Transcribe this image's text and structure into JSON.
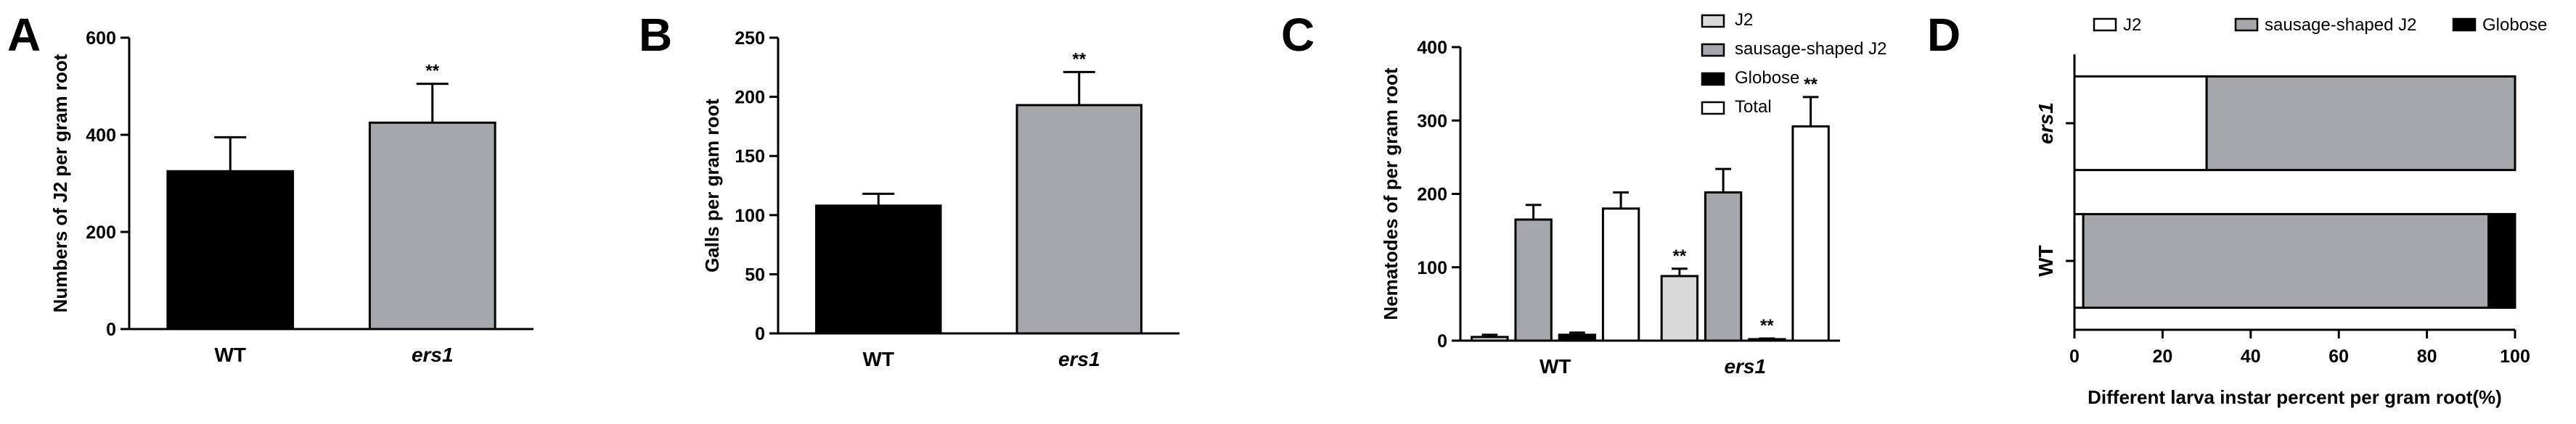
{
  "chart_data": [
    {
      "panel": "A",
      "type": "bar",
      "ylabel": "Numbers of J2 per gram root",
      "categories": [
        "WT",
        "ers1"
      ],
      "italic_categories": [
        false,
        true
      ],
      "values": [
        325,
        425
      ],
      "errors": [
        70,
        80
      ],
      "significance": [
        "",
        "**"
      ],
      "colors": [
        "#000000",
        "#a6a6ad"
      ],
      "ylim": [
        0,
        600
      ],
      "yticks": [
        0,
        200,
        400,
        600
      ]
    },
    {
      "panel": "B",
      "type": "bar",
      "ylabel": "Galls per gram root",
      "categories": [
        "WT",
        "ers1"
      ],
      "italic_categories": [
        false,
        true
      ],
      "values": [
        108,
        193
      ],
      "errors": [
        10,
        28
      ],
      "significance": [
        "",
        "**"
      ],
      "colors": [
        "#000000",
        "#a6a6ad"
      ],
      "ylim": [
        0,
        250
      ],
      "yticks": [
        0,
        50,
        100,
        150,
        200,
        250
      ]
    },
    {
      "panel": "C",
      "type": "bar",
      "ylabel": "Nematodes of per gram root",
      "categories": [
        "WT",
        "ers1"
      ],
      "italic_categories": [
        false,
        true
      ],
      "series": [
        {
          "name": "J2",
          "values": [
            5,
            88
          ],
          "errors": [
            3,
            10
          ],
          "significance": [
            "",
            "**"
          ],
          "color": "#d9d9d9"
        },
        {
          "name": "sausage-shaped J2",
          "values": [
            165,
            202
          ],
          "errors": [
            20,
            32
          ],
          "significance": [
            "",
            ""
          ],
          "color": "#a6a6ad"
        },
        {
          "name": "Globose",
          "values": [
            8,
            2
          ],
          "errors": [
            3,
            1
          ],
          "significance": [
            "",
            "**"
          ],
          "color": "#000000"
        },
        {
          "name": "Total",
          "values": [
            180,
            292
          ],
          "errors": [
            22,
            40
          ],
          "significance": [
            "",
            "**"
          ],
          "color": "#ffffff"
        }
      ],
      "ylim": [
        0,
        400
      ],
      "yticks": [
        0,
        100,
        200,
        300,
        400
      ]
    },
    {
      "panel": "D",
      "type": "bar",
      "orientation": "horizontal",
      "stacked": true,
      "xlabel": "Different larva instar percent per gram root(%)",
      "categories": [
        "ers1",
        "WT"
      ],
      "italic_categories": [
        true,
        false
      ],
      "series": [
        {
          "name": "J2",
          "values": [
            30,
            2
          ],
          "color": "#ffffff"
        },
        {
          "name": "sausage-shaped J2",
          "values": [
            70,
            92
          ],
          "color": "#a6a6ad"
        },
        {
          "name": "Globose",
          "values": [
            0,
            6
          ],
          "color": "#000000"
        }
      ],
      "xlim": [
        0,
        100
      ],
      "xticks": [
        0,
        20,
        40,
        60,
        80,
        100
      ]
    }
  ]
}
